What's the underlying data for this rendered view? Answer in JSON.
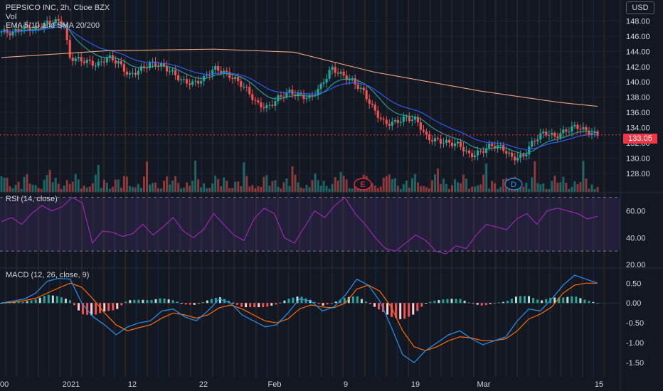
{
  "header": {
    "symbol_line": "PEPSICO INC, 2h, Cboe BZX",
    "vol_label": "Vol",
    "ma_label": "EMA 5/10 and SMA 20/200",
    "currency": "USD"
  },
  "rsi_label": "RSI (14, close)",
  "macd_label": "MACD (12, 26, close, 9)",
  "last_price": "133.05",
  "colors": {
    "bg": "#131722",
    "up": "#26a69a",
    "down": "#ef5350",
    "ema5": "#26a69a",
    "ema10": "#2962ff",
    "sma200": "#e8a37a",
    "rsi": "#9c27b0",
    "macd": "#2196f3",
    "signal": "#ff6d00"
  },
  "events": [
    "E",
    "D"
  ],
  "chart_data": [
    {
      "type": "candlestick",
      "title": "PEPSICO INC, 2h, Cboe BZX",
      "x_ticks": [
        "00",
        "2021",
        "12",
        "22",
        "Feb",
        "9",
        "19",
        "Mar",
        "15"
      ],
      "y_ticks": [
        "148.00",
        "146.00",
        "144.00",
        "142.00",
        "140.00",
        "138.00",
        "136.00",
        "134.00",
        "132.00",
        "130.00",
        "128.00"
      ],
      "ylim": [
        126.5,
        150.0
      ],
      "close_path": [
        [
          0,
          146.6
        ],
        [
          2,
          146.4
        ],
        [
          4,
          147.2
        ],
        [
          6,
          146.9
        ],
        [
          8,
          147.6
        ],
        [
          10,
          148.0
        ],
        [
          12,
          147.5
        ],
        [
          12.6,
          143.2
        ],
        [
          14,
          143.0
        ],
        [
          16,
          142.7
        ],
        [
          18,
          142.2
        ],
        [
          20,
          143.3
        ],
        [
          22,
          142.5
        ],
        [
          24,
          140.8
        ],
        [
          26,
          141.6
        ],
        [
          28,
          142.4
        ],
        [
          30,
          142.2
        ],
        [
          32,
          141.3
        ],
        [
          34,
          140.1
        ],
        [
          36,
          139.8
        ],
        [
          38,
          140.4
        ],
        [
          40,
          141.8
        ],
        [
          42,
          141.2
        ],
        [
          44,
          140.3
        ],
        [
          46,
          139.1
        ],
        [
          48,
          137.1
        ],
        [
          50,
          136.6
        ],
        [
          52,
          137.9
        ],
        [
          54,
          138.7
        ],
        [
          56,
          138.2
        ],
        [
          58,
          137.9
        ],
        [
          60,
          139.4
        ],
        [
          62,
          141.8
        ],
        [
          64,
          140.9
        ],
        [
          66,
          140.1
        ],
        [
          68,
          138.7
        ],
        [
          70,
          136.3
        ],
        [
          72,
          134.5
        ],
        [
          74,
          134.7
        ],
        [
          76,
          135.3
        ],
        [
          78,
          135.0
        ],
        [
          80,
          132.6
        ],
        [
          82,
          132.3
        ],
        [
          84,
          132.0
        ],
        [
          86,
          131.8
        ],
        [
          88,
          130.3
        ],
        [
          90,
          130.8
        ],
        [
          92,
          131.7
        ],
        [
          94,
          131.4
        ],
        [
          96,
          130.0
        ],
        [
          98,
          130.2
        ],
        [
          100,
          132.3
        ],
        [
          102,
          133.4
        ],
        [
          104,
          132.8
        ],
        [
          106,
          133.6
        ],
        [
          108,
          134.2
        ],
        [
          110,
          133.5
        ],
        [
          112,
          133.05
        ]
      ],
      "sma200": [
        [
          0,
          143.2
        ],
        [
          20,
          144.1
        ],
        [
          40,
          144.3
        ],
        [
          55,
          143.9
        ],
        [
          70,
          141.3
        ],
        [
          90,
          138.8
        ],
        [
          105,
          137.3
        ],
        [
          112,
          136.8
        ]
      ],
      "volume_range": [
        0,
        1
      ]
    },
    {
      "type": "line",
      "title": "RSI (14, close)",
      "y_ticks": [
        "60.00",
        "40.00",
        "20.00"
      ],
      "ylim": [
        18,
        73
      ],
      "bands": [
        30,
        70
      ],
      "values": [
        52,
        55,
        50,
        58,
        64,
        60,
        63,
        70,
        66,
        36,
        45,
        44,
        41,
        43,
        50,
        42,
        48,
        55,
        45,
        40,
        46,
        58,
        50,
        42,
        38,
        54,
        62,
        58,
        40,
        36,
        48,
        60,
        55,
        64,
        70,
        58,
        50,
        40,
        32,
        30,
        36,
        42,
        38,
        30,
        28,
        34,
        32,
        42,
        50,
        48,
        46,
        54,
        58,
        50,
        60,
        62,
        60,
        58,
        54,
        56
      ]
    },
    {
      "type": "macd",
      "title": "MACD (12, 26, close, 9)",
      "y_ticks": [
        "0.50",
        "0.00",
        "-0.50",
        "-1.00",
        "-1.50"
      ],
      "ylim": [
        -1.75,
        0.72
      ],
      "macd": [
        0.0,
        0.05,
        0.1,
        0.25,
        0.55,
        0.62,
        0.6,
        0.0,
        -0.35,
        -0.55,
        -0.8,
        -0.6,
        -0.5,
        -0.45,
        -0.2,
        -0.15,
        -0.35,
        -0.45,
        -0.2,
        0.1,
        0.0,
        -0.3,
        -0.45,
        -0.6,
        -0.55,
        -0.25,
        0.1,
        0.05,
        -0.2,
        -0.1,
        0.2,
        0.6,
        0.45,
        0.05,
        -0.6,
        -1.3,
        -1.5,
        -1.2,
        -1.0,
        -0.8,
        -0.7,
        -0.9,
        -1.05,
        -0.95,
        -0.85,
        -0.45,
        -0.15,
        -0.2,
        0.1,
        0.45,
        0.7,
        0.6,
        0.5
      ],
      "signal": [
        0.0,
        0.02,
        0.06,
        0.12,
        0.25,
        0.38,
        0.5,
        0.4,
        0.1,
        -0.25,
        -0.55,
        -0.7,
        -0.62,
        -0.55,
        -0.38,
        -0.25,
        -0.3,
        -0.38,
        -0.3,
        -0.12,
        -0.05,
        -0.15,
        -0.3,
        -0.45,
        -0.5,
        -0.4,
        -0.15,
        -0.05,
        -0.1,
        -0.12,
        0.0,
        0.35,
        0.45,
        0.3,
        -0.1,
        -0.7,
        -1.1,
        -1.2,
        -1.1,
        -0.95,
        -0.85,
        -0.88,
        -0.95,
        -0.95,
        -0.9,
        -0.7,
        -0.4,
        -0.28,
        -0.1,
        0.25,
        0.45,
        0.5,
        0.5
      ]
    }
  ]
}
